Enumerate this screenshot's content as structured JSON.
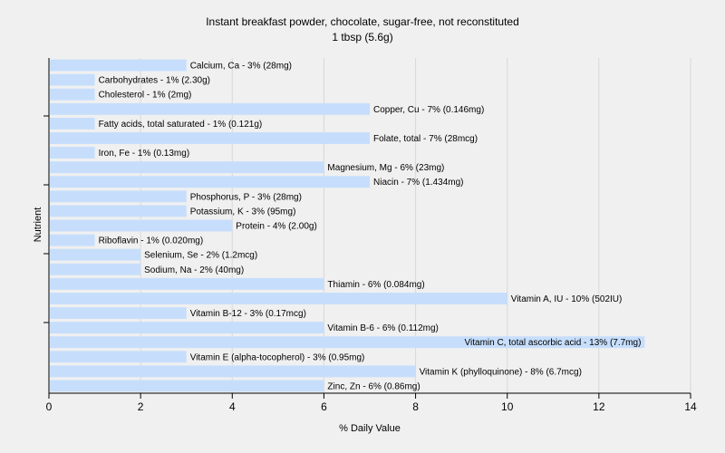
{
  "chart_data": {
    "type": "bar",
    "orientation": "horizontal",
    "title": "Instant breakfast powder, chocolate, sugar-free, not reconstituted",
    "subtitle": "1 tbsp (5.6g)",
    "xlabel": "% Daily Value",
    "ylabel": "Nutrient",
    "xlim": [
      0,
      14
    ],
    "xticks": [
      0,
      2,
      4,
      6,
      8,
      10,
      12,
      14
    ],
    "grid": true,
    "bar_color": "#c6defc",
    "grid_color": "#d8d8d8",
    "bars": [
      {
        "label": "Calcium, Ca - 3% (28mg)",
        "value": 3
      },
      {
        "label": "Carbohydrates - 1% (2.30g)",
        "value": 1
      },
      {
        "label": "Cholesterol - 1% (2mg)",
        "value": 1
      },
      {
        "label": "Copper, Cu - 7% (0.146mg)",
        "value": 7
      },
      {
        "label": "Fatty acids, total saturated - 1% (0.121g)",
        "value": 1
      },
      {
        "label": "Folate, total - 7% (28mcg)",
        "value": 7
      },
      {
        "label": "Iron, Fe - 1% (0.13mg)",
        "value": 1
      },
      {
        "label": "Magnesium, Mg - 6% (23mg)",
        "value": 6
      },
      {
        "label": "Niacin - 7% (1.434mg)",
        "value": 7
      },
      {
        "label": "Phosphorus, P - 3% (28mg)",
        "value": 3
      },
      {
        "label": "Potassium, K - 3% (95mg)",
        "value": 3
      },
      {
        "label": "Protein - 4% (2.00g)",
        "value": 4
      },
      {
        "label": "Riboflavin - 1% (0.020mg)",
        "value": 1
      },
      {
        "label": "Selenium, Se - 2% (1.2mcg)",
        "value": 2
      },
      {
        "label": "Sodium, Na - 2% (40mg)",
        "value": 2
      },
      {
        "label": "Thiamin - 6% (0.084mg)",
        "value": 6
      },
      {
        "label": "Vitamin A, IU - 10% (502IU)",
        "value": 10
      },
      {
        "label": "Vitamin B-12 - 3% (0.17mcg)",
        "value": 3
      },
      {
        "label": "Vitamin B-6 - 6% (0.112mg)",
        "value": 6
      },
      {
        "label": "Vitamin C, total ascorbic acid - 13% (7.7mg)",
        "value": 13
      },
      {
        "label": "Vitamin E (alpha-tocopherol) - 3% (0.95mg)",
        "value": 3
      },
      {
        "label": "Vitamin K (phylloquinone) - 8% (6.7mcg)",
        "value": 8
      },
      {
        "label": "Zinc, Zn - 6% (0.86mg)",
        "value": 6
      }
    ]
  }
}
